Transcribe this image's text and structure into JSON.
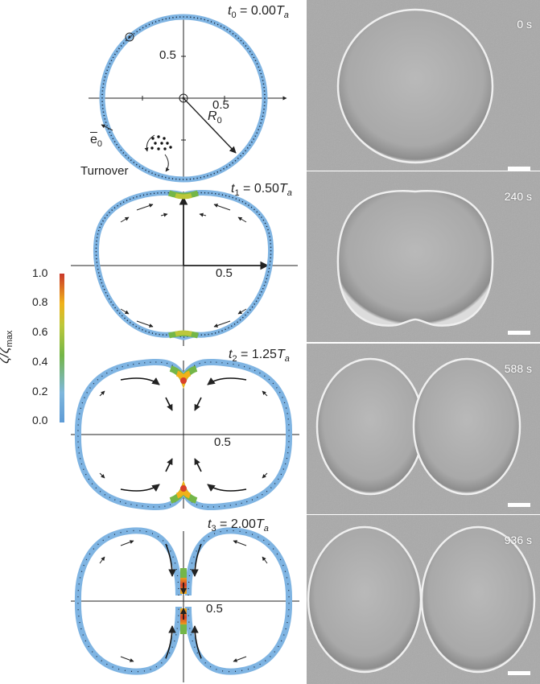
{
  "panels": [
    {
      "time_label_prefix": "t",
      "sub": "0",
      "eq": " = 0.00",
      "unit": "T",
      "unit_sub": "a",
      "axis_tick_x": "0.5",
      "axis_tick_y": "0.5",
      "photo_time": "0 s"
    },
    {
      "time_label_prefix": "t",
      "sub": "1",
      "eq": " = 0.50",
      "unit": "T",
      "unit_sub": "a",
      "axis_tick_x": "0.5",
      "photo_time": "240 s"
    },
    {
      "time_label_prefix": "t",
      "sub": "2",
      "eq": " = 1.25",
      "unit": "T",
      "unit_sub": "a",
      "axis_tick_x": "0.5",
      "photo_time": "588 s"
    },
    {
      "time_label_prefix": "t",
      "sub": "3",
      "eq": " = 2.00",
      "unit": "T",
      "unit_sub": "a",
      "axis_tick_x": "0.5",
      "photo_time": "936 s"
    }
  ],
  "annotations": {
    "radius": "R",
    "radius_sub": "0",
    "thickness": "e",
    "thickness_sub": "0",
    "turnover": "Turnover"
  },
  "colorbar": {
    "label": "ζ/ζ",
    "label_sub": "max",
    "ticks": [
      "1.0",
      "0.8",
      "0.6",
      "0.4",
      "0.2",
      "0.0"
    ],
    "colors": {
      "low": "#6aa7dc",
      "mid": "#74b648",
      "high_mid": "#f0c419",
      "high": "#d9412a"
    }
  },
  "colors": {
    "membrane": "#7fb4e2",
    "membrane_edge": "#5c98cc",
    "axis": "#222222",
    "photo_bg": "#a6a6a6"
  }
}
